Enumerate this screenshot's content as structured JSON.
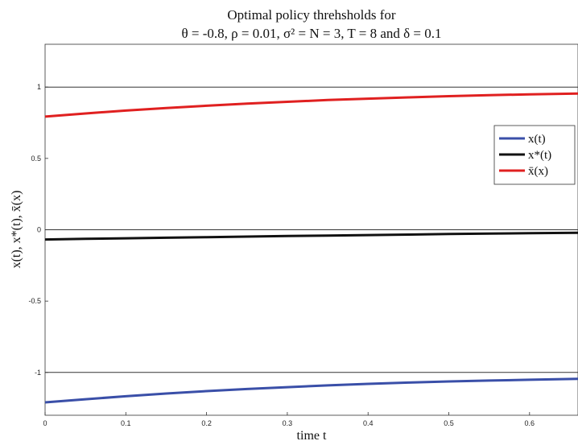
{
  "chart_data": {
    "type": "line",
    "title_line1": "Optimal policy threhsholds for",
    "title_line2": "θ = -0.8, ρ = 0.01, σ² = N = 3, T = 8 and δ = 0.1",
    "xlabel": "time t",
    "ylabel": "x(t), x*(t), x̄(x)",
    "xlim": [
      0,
      0.66
    ],
    "ylim": [
      -1.3,
      1.3
    ],
    "xticks": [
      0,
      0.1,
      0.2,
      0.3,
      0.4,
      0.5,
      0.6
    ],
    "xtick_labels": [
      "0",
      "0.1",
      "0.2",
      "0.3",
      "0.4",
      "0.5",
      "0.6"
    ],
    "yticks": [
      -1,
      -0.5,
      0,
      0.5,
      1
    ],
    "ytick_labels": [
      "-1",
      "-0.5",
      "0",
      "0.5",
      "1"
    ],
    "hlines": [
      -1,
      0,
      1
    ],
    "legend_position": "right",
    "x": [
      0,
      0.05,
      0.1,
      0.15,
      0.2,
      0.25,
      0.3,
      0.35,
      0.4,
      0.45,
      0.5,
      0.55,
      0.6,
      0.66
    ],
    "series": [
      {
        "name": "x(t)",
        "color": "#3a4fa8",
        "values": [
          -1.21,
          -1.188,
          -1.167,
          -1.148,
          -1.131,
          -1.116,
          -1.103,
          -1.091,
          -1.08,
          -1.071,
          -1.063,
          -1.057,
          -1.051,
          -1.045
        ]
      },
      {
        "name": "x*(t)",
        "color": "#111111",
        "values": [
          -0.068,
          -0.064,
          -0.06,
          -0.056,
          -0.052,
          -0.048,
          -0.044,
          -0.041,
          -0.037,
          -0.034,
          -0.03,
          -0.027,
          -0.024,
          -0.021
        ]
      },
      {
        "name": "x̄(x)",
        "color": "#e02020",
        "values": [
          0.793,
          0.815,
          0.835,
          0.853,
          0.869,
          0.884,
          0.897,
          0.909,
          0.919,
          0.928,
          0.936,
          0.943,
          0.949,
          0.955
        ]
      }
    ]
  }
}
